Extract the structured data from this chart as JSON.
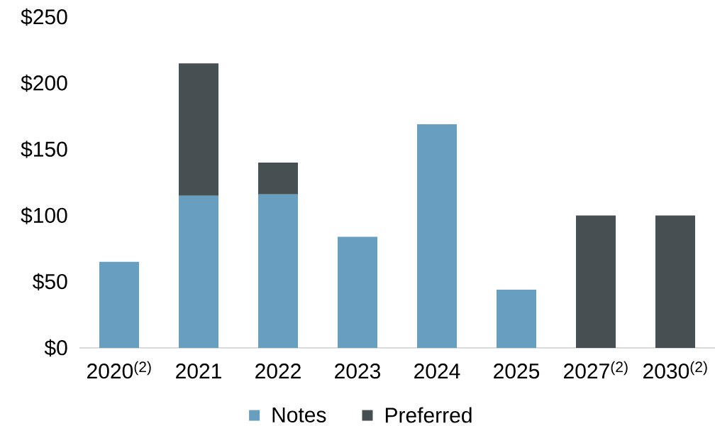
{
  "chart_data": {
    "type": "bar",
    "stacked": true,
    "categories": [
      "2020$^{(2)}$",
      "2021",
      "2022",
      "2023",
      "2024",
      "2025",
      "2027$^{(2)}$",
      "2030$^{(2)}$"
    ],
    "series": [
      {
        "name": "Notes",
        "color": "#689ec0",
        "values": [
          65,
          115,
          116,
          84,
          169,
          44,
          null,
          null
        ]
      },
      {
        "name": "Preferred",
        "color": "#465052",
        "values": [
          null,
          100,
          24,
          null,
          null,
          null,
          100,
          100
        ]
      }
    ],
    "ylim": [
      0,
      250
    ],
    "yticks": [
      {
        "value": 0,
        "label": "$0"
      },
      {
        "value": 50,
        "label": "$50"
      },
      {
        "value": 100,
        "label": "$100"
      },
      {
        "value": 150,
        "label": "$150"
      },
      {
        "value": 200,
        "label": "$200"
      },
      {
        "value": 250,
        "label": "$250"
      }
    ],
    "legend": "bottom"
  }
}
